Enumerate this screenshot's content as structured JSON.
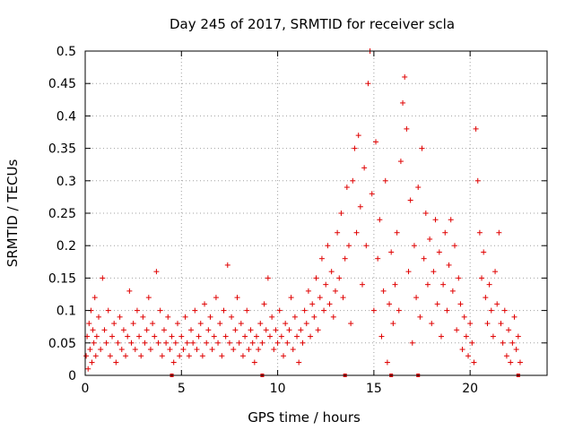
{
  "chart_data": {
    "type": "scatter",
    "title": "Day 245 of 2017, SRMTID for receiver scla",
    "xlabel": "GPS time / hours",
    "ylabel": "SRMTID / TECUs",
    "xlim": [
      0,
      24
    ],
    "ylim": [
      0,
      0.5
    ],
    "xticks": [
      0,
      5,
      10,
      15,
      20
    ],
    "yticks": [
      0,
      0.05,
      0.1,
      0.15,
      0.2,
      0.25,
      0.3,
      0.35,
      0.4,
      0.45,
      0.5
    ],
    "grid": true,
    "marker": "+",
    "color": "#e00000",
    "bottom_markers_x": [
      4.5,
      9.2,
      13.5,
      15.9,
      17.3,
      22.5
    ],
    "series": [
      {
        "name": "SRMTID",
        "points": [
          [
            0.05,
            0.03
          ],
          [
            0.1,
            0.06
          ],
          [
            0.15,
            0.01
          ],
          [
            0.2,
            0.08
          ],
          [
            0.25,
            0.04
          ],
          [
            0.3,
            0.1
          ],
          [
            0.35,
            0.02
          ],
          [
            0.4,
            0.07
          ],
          [
            0.45,
            0.05
          ],
          [
            0.5,
            0.12
          ],
          [
            0.55,
            0.03
          ],
          [
            0.6,
            0.06
          ],
          [
            0.7,
            0.09
          ],
          [
            0.8,
            0.04
          ],
          [
            0.9,
            0.15
          ],
          [
            1.0,
            0.07
          ],
          [
            1.1,
            0.05
          ],
          [
            1.2,
            0.1
          ],
          [
            1.3,
            0.03
          ],
          [
            1.4,
            0.06
          ],
          [
            1.5,
            0.08
          ],
          [
            1.6,
            0.02
          ],
          [
            1.7,
            0.05
          ],
          [
            1.8,
            0.09
          ],
          [
            1.9,
            0.04
          ],
          [
            2.0,
            0.07
          ],
          [
            2.1,
            0.03
          ],
          [
            2.2,
            0.06
          ],
          [
            2.3,
            0.13
          ],
          [
            2.4,
            0.05
          ],
          [
            2.5,
            0.08
          ],
          [
            2.6,
            0.04
          ],
          [
            2.7,
            0.1
          ],
          [
            2.8,
            0.06
          ],
          [
            2.9,
            0.03
          ],
          [
            3.0,
            0.09
          ],
          [
            3.1,
            0.05
          ],
          [
            3.2,
            0.07
          ],
          [
            3.3,
            0.12
          ],
          [
            3.4,
            0.04
          ],
          [
            3.5,
            0.08
          ],
          [
            3.6,
            0.06
          ],
          [
            3.7,
            0.16
          ],
          [
            3.8,
            0.05
          ],
          [
            3.9,
            0.1
          ],
          [
            4.0,
            0.03
          ],
          [
            4.1,
            0.07
          ],
          [
            4.2,
            0.05
          ],
          [
            4.3,
            0.09
          ],
          [
            4.4,
            0.04
          ],
          [
            4.5,
            0.06
          ],
          [
            4.6,
            0.02
          ],
          [
            4.7,
            0.05
          ],
          [
            4.8,
            0.08
          ],
          [
            4.9,
            0.03
          ],
          [
            5.0,
            0.06
          ],
          [
            5.1,
            0.04
          ],
          [
            5.2,
            0.09
          ],
          [
            5.3,
            0.05
          ],
          [
            5.4,
            0.03
          ],
          [
            5.5,
            0.07
          ],
          [
            5.6,
            0.05
          ],
          [
            5.7,
            0.1
          ],
          [
            5.8,
            0.04
          ],
          [
            5.9,
            0.06
          ],
          [
            6.0,
            0.08
          ],
          [
            6.1,
            0.03
          ],
          [
            6.2,
            0.11
          ],
          [
            6.3,
            0.05
          ],
          [
            6.4,
            0.07
          ],
          [
            6.5,
            0.09
          ],
          [
            6.6,
            0.04
          ],
          [
            6.7,
            0.06
          ],
          [
            6.8,
            0.12
          ],
          [
            6.9,
            0.05
          ],
          [
            7.0,
            0.08
          ],
          [
            7.1,
            0.03
          ],
          [
            7.2,
            0.1
          ],
          [
            7.3,
            0.06
          ],
          [
            7.4,
            0.17
          ],
          [
            7.5,
            0.05
          ],
          [
            7.6,
            0.09
          ],
          [
            7.7,
            0.04
          ],
          [
            7.8,
            0.07
          ],
          [
            7.9,
            0.12
          ],
          [
            8.0,
            0.05
          ],
          [
            8.1,
            0.08
          ],
          [
            8.2,
            0.03
          ],
          [
            8.3,
            0.06
          ],
          [
            8.4,
            0.1
          ],
          [
            8.5,
            0.04
          ],
          [
            8.6,
            0.07
          ],
          [
            8.7,
            0.05
          ],
          [
            8.8,
            0.02
          ],
          [
            8.9,
            0.06
          ],
          [
            9.0,
            0.04
          ],
          [
            9.1,
            0.08
          ],
          [
            9.2,
            0.05
          ],
          [
            9.3,
            0.11
          ],
          [
            9.4,
            0.07
          ],
          [
            9.5,
            0.15
          ],
          [
            9.6,
            0.06
          ],
          [
            9.7,
            0.09
          ],
          [
            9.8,
            0.04
          ],
          [
            9.9,
            0.07
          ],
          [
            10.0,
            0.05
          ],
          [
            10.1,
            0.1
          ],
          [
            10.2,
            0.06
          ],
          [
            10.3,
            0.03
          ],
          [
            10.4,
            0.08
          ],
          [
            10.5,
            0.05
          ],
          [
            10.6,
            0.07
          ],
          [
            10.7,
            0.12
          ],
          [
            10.8,
            0.04
          ],
          [
            10.9,
            0.09
          ],
          [
            11.0,
            0.06
          ],
          [
            11.1,
            0.02
          ],
          [
            11.2,
            0.07
          ],
          [
            11.3,
            0.05
          ],
          [
            11.4,
            0.1
          ],
          [
            11.5,
            0.08
          ],
          [
            11.6,
            0.13
          ],
          [
            11.7,
            0.06
          ],
          [
            11.8,
            0.11
          ],
          [
            11.9,
            0.09
          ],
          [
            12.0,
            0.15
          ],
          [
            12.1,
            0.07
          ],
          [
            12.2,
            0.12
          ],
          [
            12.3,
            0.18
          ],
          [
            12.4,
            0.1
          ],
          [
            12.5,
            0.14
          ],
          [
            12.6,
            0.2
          ],
          [
            12.7,
            0.11
          ],
          [
            12.8,
            0.16
          ],
          [
            12.9,
            0.09
          ],
          [
            13.0,
            0.13
          ],
          [
            13.1,
            0.22
          ],
          [
            13.2,
            0.15
          ],
          [
            13.3,
            0.25
          ],
          [
            13.4,
            0.12
          ],
          [
            13.5,
            0.18
          ],
          [
            13.6,
            0.29
          ],
          [
            13.7,
            0.2
          ],
          [
            13.8,
            0.08
          ],
          [
            13.9,
            0.3
          ],
          [
            14.0,
            0.35
          ],
          [
            14.1,
            0.22
          ],
          [
            14.2,
            0.37
          ],
          [
            14.3,
            0.26
          ],
          [
            14.4,
            0.14
          ],
          [
            14.5,
            0.32
          ],
          [
            14.6,
            0.2
          ],
          [
            14.7,
            0.45
          ],
          [
            14.8,
            0.5
          ],
          [
            14.9,
            0.28
          ],
          [
            15.0,
            0.1
          ],
          [
            15.1,
            0.36
          ],
          [
            15.2,
            0.18
          ],
          [
            15.3,
            0.24
          ],
          [
            15.4,
            0.06
          ],
          [
            15.5,
            0.13
          ],
          [
            15.6,
            0.3
          ],
          [
            15.7,
            0.02
          ],
          [
            15.8,
            0.11
          ],
          [
            15.9,
            0.19
          ],
          [
            16.0,
            0.08
          ],
          [
            16.1,
            0.14
          ],
          [
            16.2,
            0.22
          ],
          [
            16.3,
            0.1
          ],
          [
            16.4,
            0.33
          ],
          [
            16.5,
            0.42
          ],
          [
            16.6,
            0.46
          ],
          [
            16.7,
            0.38
          ],
          [
            16.8,
            0.16
          ],
          [
            16.9,
            0.27
          ],
          [
            17.0,
            0.05
          ],
          [
            17.1,
            0.2
          ],
          [
            17.2,
            0.12
          ],
          [
            17.3,
            0.29
          ],
          [
            17.4,
            0.09
          ],
          [
            17.5,
            0.35
          ],
          [
            17.6,
            0.18
          ],
          [
            17.7,
            0.25
          ],
          [
            17.8,
            0.14
          ],
          [
            17.9,
            0.21
          ],
          [
            18.0,
            0.08
          ],
          [
            18.1,
            0.16
          ],
          [
            18.2,
            0.24
          ],
          [
            18.3,
            0.11
          ],
          [
            18.4,
            0.19
          ],
          [
            18.5,
            0.06
          ],
          [
            18.6,
            0.14
          ],
          [
            18.7,
            0.22
          ],
          [
            18.8,
            0.1
          ],
          [
            18.9,
            0.17
          ],
          [
            19.0,
            0.24
          ],
          [
            19.1,
            0.13
          ],
          [
            19.2,
            0.2
          ],
          [
            19.3,
            0.07
          ],
          [
            19.4,
            0.15
          ],
          [
            19.5,
            0.11
          ],
          [
            19.6,
            0.04
          ],
          [
            19.7,
            0.09
          ],
          [
            19.8,
            0.06
          ],
          [
            19.9,
            0.03
          ],
          [
            20.0,
            0.08
          ],
          [
            20.1,
            0.05
          ],
          [
            20.2,
            0.02
          ],
          [
            20.3,
            0.38
          ],
          [
            20.4,
            0.3
          ],
          [
            20.5,
            0.22
          ],
          [
            20.6,
            0.15
          ],
          [
            20.7,
            0.19
          ],
          [
            20.8,
            0.12
          ],
          [
            20.9,
            0.08
          ],
          [
            21.0,
            0.14
          ],
          [
            21.1,
            0.1
          ],
          [
            21.2,
            0.06
          ],
          [
            21.3,
            0.16
          ],
          [
            21.4,
            0.11
          ],
          [
            21.5,
            0.22
          ],
          [
            21.6,
            0.08
          ],
          [
            21.7,
            0.05
          ],
          [
            21.8,
            0.1
          ],
          [
            21.9,
            0.03
          ],
          [
            22.0,
            0.07
          ],
          [
            22.1,
            0.02
          ],
          [
            22.2,
            0.05
          ],
          [
            22.3,
            0.09
          ],
          [
            22.4,
            0.04
          ],
          [
            22.5,
            0.06
          ],
          [
            22.6,
            0.02
          ]
        ]
      }
    ]
  }
}
